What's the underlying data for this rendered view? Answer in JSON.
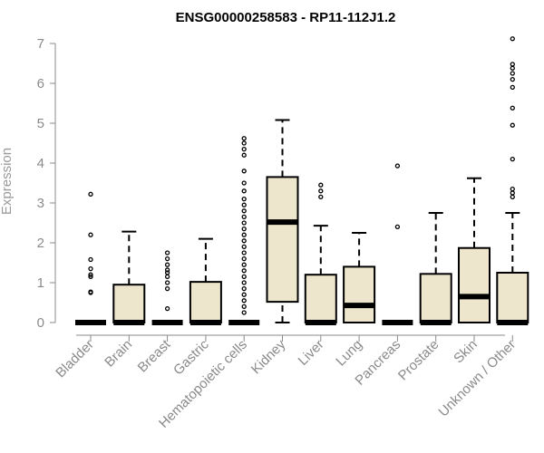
{
  "chart_data": {
    "type": "boxplot",
    "title": "ENSG00000258583 - RP11-112J1.2",
    "ylabel": "Expression",
    "xlabel": "",
    "ylim": [
      0,
      7
    ],
    "yticks": [
      0,
      1,
      2,
      3,
      4,
      5,
      6,
      7
    ],
    "box_color": "#ede6cc",
    "categories": [
      "Bladder",
      "Brain",
      "Breast",
      "Gastric",
      "Hematopoietic cells",
      "Kidney",
      "Liver",
      "Lung",
      "Pancreas",
      "Prostate",
      "Skin",
      "Unknown / Other"
    ],
    "series": [
      {
        "label": "Bladder",
        "min": 0,
        "q1": 0,
        "median": 0,
        "q3": 0,
        "max": 0,
        "outliers": [
          0.75,
          0.77,
          1.15,
          1.2,
          1.35,
          1.58,
          2.2,
          3.22
        ]
      },
      {
        "label": "Brain",
        "min": 0,
        "q1": 0,
        "median": 0,
        "q3": 0.95,
        "max": 2.28,
        "outliers": []
      },
      {
        "label": "Breast",
        "min": 0,
        "q1": 0,
        "median": 0,
        "q3": 0,
        "max": 0,
        "outliers": [
          0.35,
          0.85,
          1.0,
          1.15,
          1.25,
          1.32,
          1.45,
          1.6,
          1.75
        ]
      },
      {
        "label": "Gastric",
        "min": 0,
        "q1": 0,
        "median": 0,
        "q3": 1.02,
        "max": 2.1,
        "outliers": []
      },
      {
        "label": "Hematopoietic cells",
        "min": 0,
        "q1": 0,
        "median": 0,
        "q3": 0,
        "max": 0,
        "outliers": [
          0.25,
          0.4,
          0.55,
          0.7,
          0.85,
          1.0,
          1.15,
          1.3,
          1.45,
          1.6,
          1.75,
          1.9,
          2.05,
          2.2,
          2.35,
          2.5,
          2.65,
          2.8,
          2.95,
          3.1,
          3.3,
          3.5,
          3.8,
          4.2,
          4.35,
          4.5,
          4.62
        ]
      },
      {
        "label": "Kidney",
        "min": 0,
        "q1": 0.52,
        "median": 2.52,
        "q3": 3.65,
        "max": 5.08,
        "outliers": []
      },
      {
        "label": "Liver",
        "min": 0,
        "q1": 0,
        "median": 0,
        "q3": 1.2,
        "max": 2.43,
        "outliers": [
          3.15,
          3.3,
          3.45
        ]
      },
      {
        "label": "Lung",
        "min": 0,
        "q1": 0,
        "median": 0.43,
        "q3": 1.4,
        "max": 2.25,
        "outliers": []
      },
      {
        "label": "Pancreas",
        "min": 0,
        "q1": 0,
        "median": 0,
        "q3": 0,
        "max": 0,
        "outliers": [
          2.4,
          3.93
        ]
      },
      {
        "label": "Prostate",
        "min": 0,
        "q1": 0,
        "median": 0,
        "q3": 1.22,
        "max": 2.75,
        "outliers": []
      },
      {
        "label": "Skin",
        "min": 0,
        "q1": 0,
        "median": 0.65,
        "q3": 1.87,
        "max": 3.62,
        "outliers": []
      },
      {
        "label": "Unknown / Other",
        "min": 0,
        "q1": 0,
        "median": 0,
        "q3": 1.25,
        "max": 2.75,
        "outliers": [
          3.15,
          3.25,
          3.35,
          4.1,
          4.95,
          5.38,
          5.9,
          6.1,
          6.25,
          6.38,
          6.48,
          7.12
        ]
      }
    ]
  }
}
